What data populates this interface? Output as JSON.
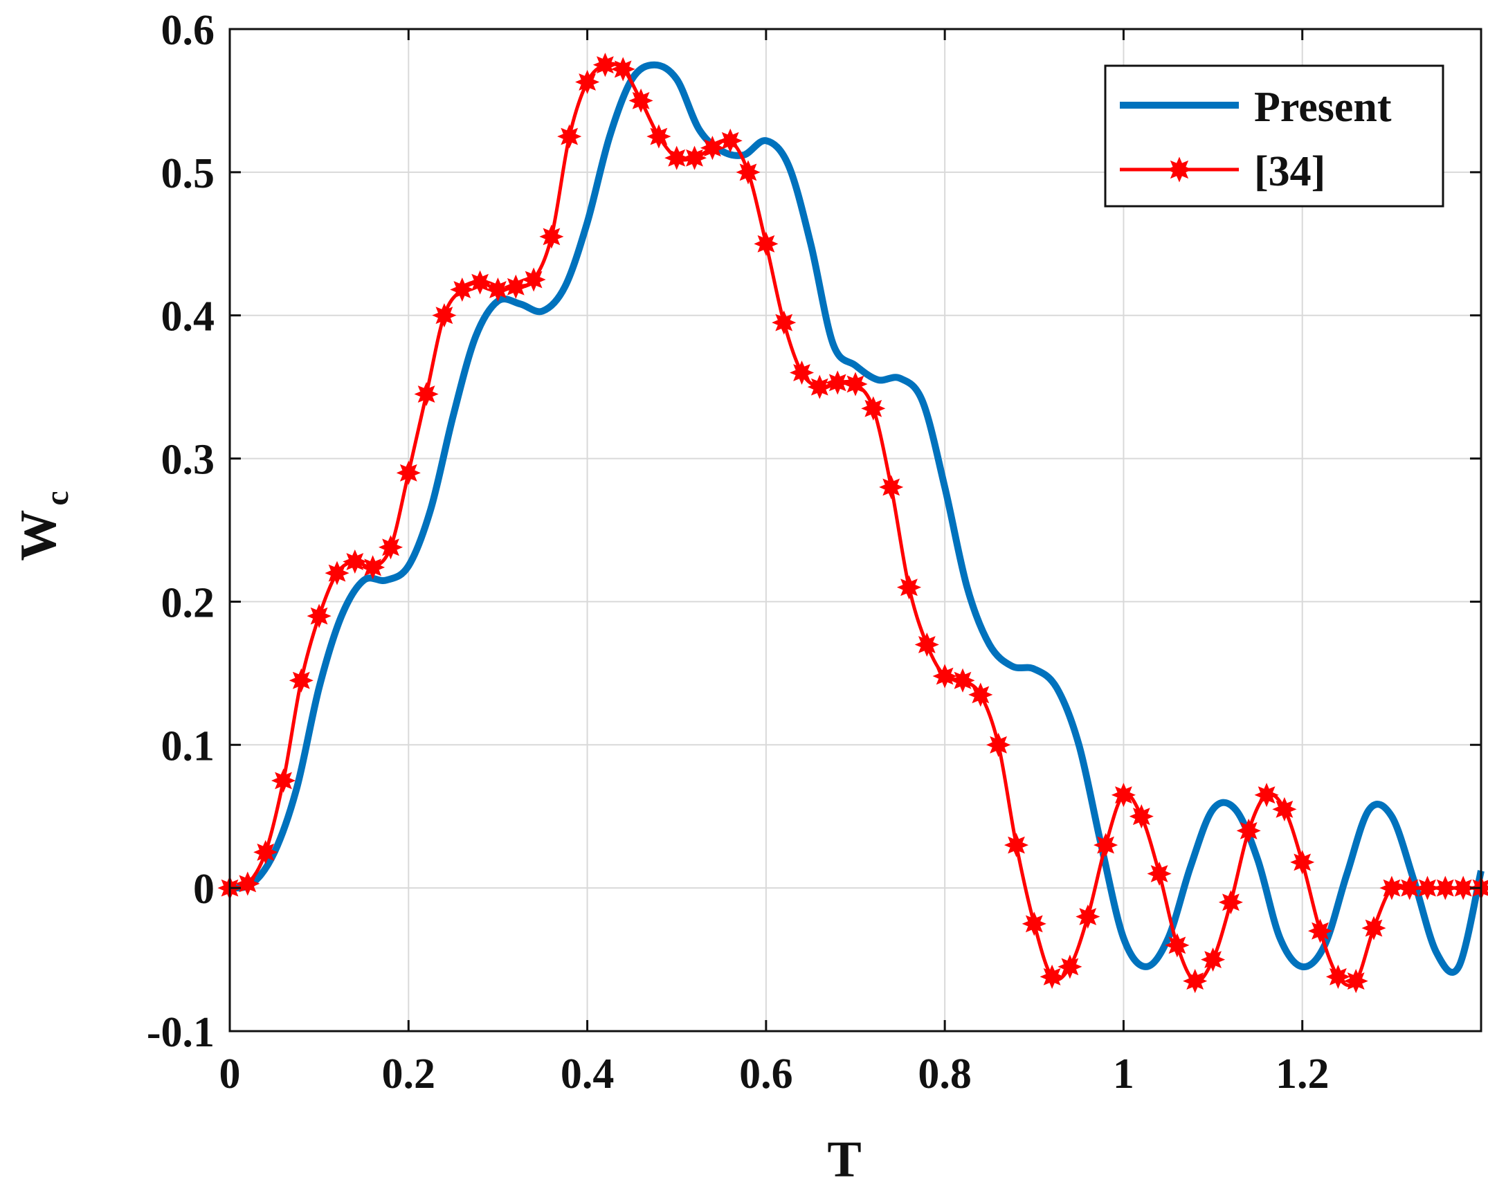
{
  "chart_data": {
    "type": "line",
    "xlabel": "T",
    "ylabel": "W",
    "ylabel_subscript": "c",
    "xlim": [
      0,
      1.4
    ],
    "ylim": [
      -0.1,
      0.6
    ],
    "xticks": [
      0,
      0.2,
      0.4,
      0.6,
      0.8,
      1,
      1.2
    ],
    "xtick_labels": [
      "0",
      "0.2",
      "0.4",
      "0.6",
      "0.8",
      "1",
      "1.2"
    ],
    "yticks": [
      -0.1,
      0,
      0.1,
      0.2,
      0.3,
      0.4,
      0.5,
      0.6
    ],
    "ytick_labels": [
      "-0.1",
      "0",
      "0.1",
      "0.2",
      "0.3",
      "0.4",
      "0.5",
      "0.6"
    ],
    "grid": true,
    "legend_position": "top-right",
    "series": [
      {
        "name": "Present",
        "color": "#0072BD",
        "marker": "none",
        "x": [
          0,
          0.025,
          0.05,
          0.075,
          0.1,
          0.125,
          0.15,
          0.175,
          0.2,
          0.225,
          0.25,
          0.275,
          0.3,
          0.325,
          0.35,
          0.375,
          0.4,
          0.425,
          0.45,
          0.475,
          0.5,
          0.525,
          0.55,
          0.575,
          0.6,
          0.625,
          0.65,
          0.675,
          0.7,
          0.725,
          0.75,
          0.775,
          0.8,
          0.825,
          0.85,
          0.875,
          0.9,
          0.925,
          0.95,
          0.975,
          1.0,
          1.025,
          1.05,
          1.075,
          1.1,
          1.125,
          1.15,
          1.175,
          1.2,
          1.225,
          1.25,
          1.275,
          1.3,
          1.325,
          1.35,
          1.375,
          1.4
        ],
        "y": [
          0.0,
          0.003,
          0.025,
          0.07,
          0.14,
          0.19,
          0.215,
          0.215,
          0.225,
          0.265,
          0.33,
          0.385,
          0.41,
          0.408,
          0.403,
          0.42,
          0.465,
          0.525,
          0.565,
          0.575,
          0.565,
          0.53,
          0.515,
          0.512,
          0.522,
          0.505,
          0.45,
          0.38,
          0.365,
          0.355,
          0.356,
          0.34,
          0.28,
          0.21,
          0.17,
          0.155,
          0.153,
          0.14,
          0.1,
          0.03,
          -0.035,
          -0.055,
          -0.035,
          0.015,
          0.055,
          0.055,
          0.02,
          -0.035,
          -0.055,
          -0.04,
          0.01,
          0.055,
          0.05,
          0.005,
          -0.045,
          -0.055,
          0.012
        ]
      },
      {
        "name": "[34]",
        "color": "#FF0000",
        "marker": "star",
        "x": [
          0,
          0.02,
          0.04,
          0.06,
          0.08,
          0.1,
          0.12,
          0.14,
          0.16,
          0.18,
          0.2,
          0.22,
          0.24,
          0.26,
          0.28,
          0.3,
          0.32,
          0.34,
          0.36,
          0.38,
          0.4,
          0.42,
          0.44,
          0.46,
          0.48,
          0.5,
          0.52,
          0.54,
          0.56,
          0.58,
          0.6,
          0.62,
          0.64,
          0.66,
          0.68,
          0.7,
          0.72,
          0.74,
          0.76,
          0.78,
          0.8,
          0.82,
          0.84,
          0.86,
          0.88,
          0.9,
          0.92,
          0.94,
          0.96,
          0.98,
          1.0,
          1.02,
          1.04,
          1.06,
          1.08,
          1.1,
          1.12,
          1.14,
          1.16,
          1.18,
          1.2,
          1.22,
          1.24,
          1.26,
          1.28,
          1.3,
          1.32,
          1.34,
          1.36,
          1.38,
          1.4
        ],
        "y": [
          0.0,
          0.003,
          0.025,
          0.075,
          0.145,
          0.19,
          0.22,
          0.228,
          0.224,
          0.238,
          0.29,
          0.345,
          0.4,
          0.418,
          0.423,
          0.418,
          0.42,
          0.425,
          0.455,
          0.525,
          0.563,
          0.575,
          0.572,
          0.55,
          0.525,
          0.51,
          0.51,
          0.517,
          0.522,
          0.5,
          0.45,
          0.395,
          0.36,
          0.35,
          0.353,
          0.352,
          0.335,
          0.28,
          0.21,
          0.17,
          0.148,
          0.145,
          0.135,
          0.1,
          0.03,
          -0.025,
          -0.062,
          -0.055,
          -0.02,
          0.03,
          0.065,
          0.05,
          0.01,
          -0.04,
          -0.065,
          -0.05,
          -0.01,
          0.04,
          0.065,
          0.055,
          0.018,
          -0.03,
          -0.062,
          -0.065,
          -0.028,
          0.0,
          0.0,
          0.0,
          0.0,
          0.0,
          0.0
        ]
      }
    ]
  }
}
